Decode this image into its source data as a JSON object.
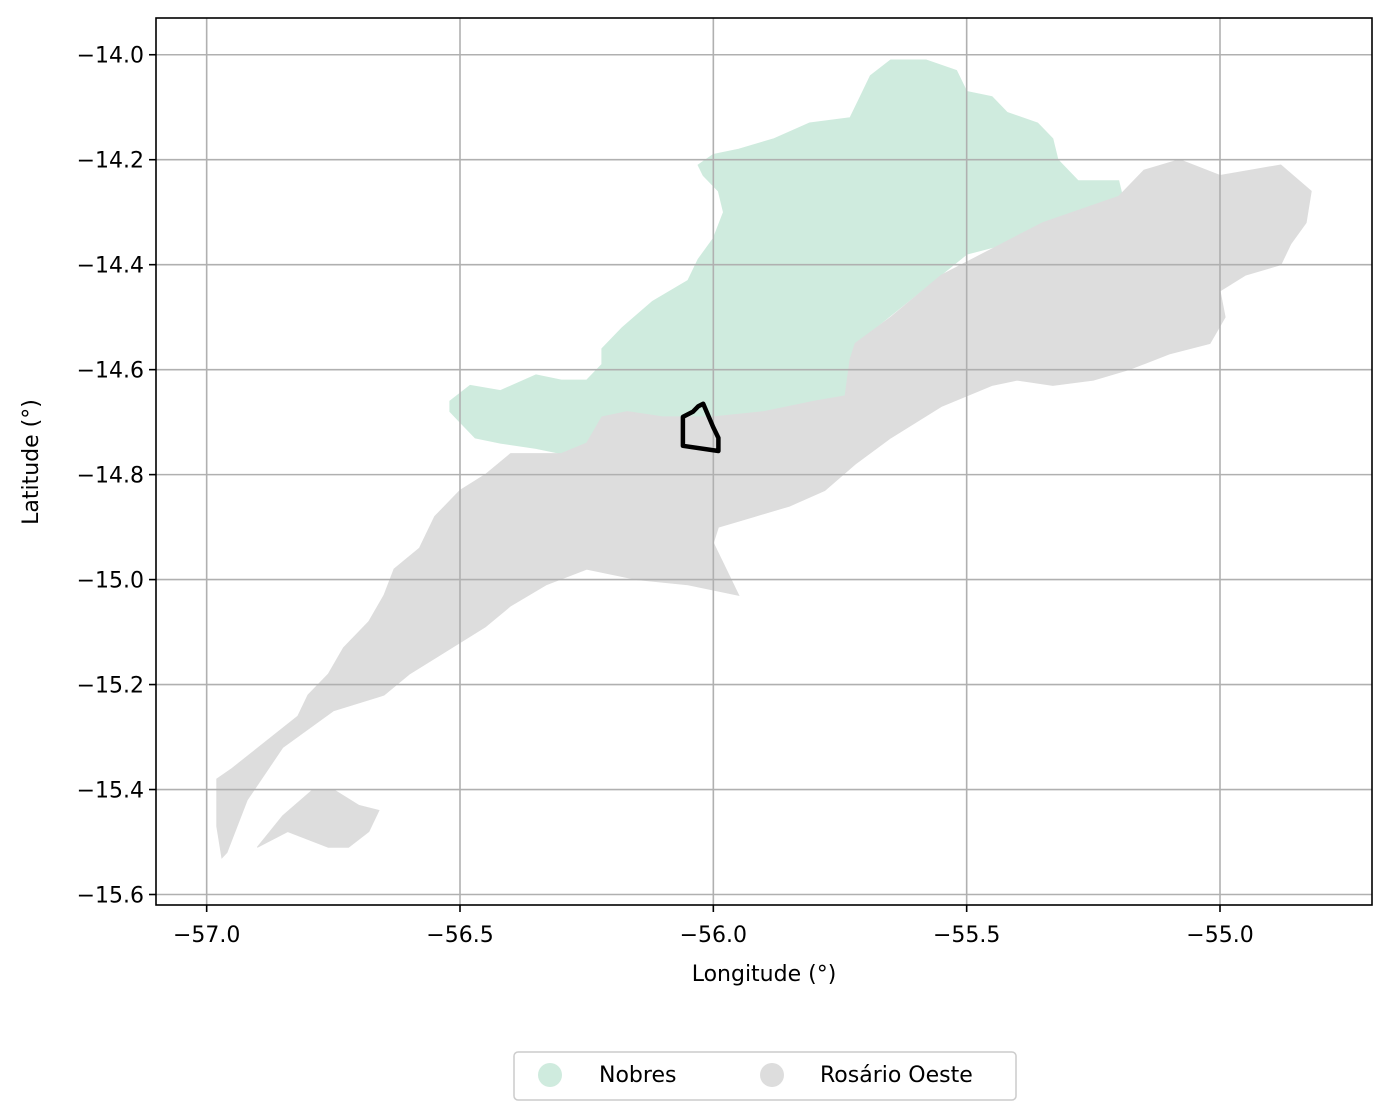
{
  "map": {
    "xlabel": "Longitude (°)",
    "ylabel": "Latitude (°)",
    "xlim": [
      -57.1,
      -54.7
    ],
    "ylim": [
      -15.62,
      -13.93
    ],
    "grid": true,
    "x_ticks": [
      {
        "value": -57.0,
        "label": "−57.0"
      },
      {
        "value": -56.5,
        "label": "−56.5"
      },
      {
        "value": -56.0,
        "label": "−56.0"
      },
      {
        "value": -55.5,
        "label": "−55.5"
      },
      {
        "value": -55.0,
        "label": "−55.0"
      }
    ],
    "y_ticks": [
      {
        "value": -14.0,
        "label": "−14.0"
      },
      {
        "value": -14.2,
        "label": "−14.2"
      },
      {
        "value": -14.4,
        "label": "−14.4"
      },
      {
        "value": -14.6,
        "label": "−14.6"
      },
      {
        "value": -14.8,
        "label": "−14.8"
      },
      {
        "value": -15.0,
        "label": "−15.0"
      },
      {
        "value": -15.2,
        "label": "−15.2"
      },
      {
        "value": -15.4,
        "label": "−15.4"
      },
      {
        "value": -15.6,
        "label": "−15.6"
      }
    ],
    "legend_position": "bottom-center",
    "regions": [
      {
        "name": "Nobres",
        "color": "#cfebde",
        "polygons": [
          [
            [
              -56.52,
              -14.66
            ],
            [
              -56.48,
              -14.63
            ],
            [
              -56.42,
              -14.64
            ],
            [
              -56.35,
              -14.61
            ],
            [
              -56.3,
              -14.62
            ],
            [
              -56.25,
              -14.62
            ],
            [
              -56.22,
              -14.59
            ],
            [
              -56.22,
              -14.56
            ],
            [
              -56.18,
              -14.52
            ],
            [
              -56.12,
              -14.47
            ],
            [
              -56.05,
              -14.43
            ],
            [
              -56.03,
              -14.39
            ],
            [
              -56.0,
              -14.35
            ],
            [
              -55.98,
              -14.3
            ],
            [
              -55.99,
              -14.26
            ],
            [
              -56.02,
              -14.23
            ],
            [
              -56.03,
              -14.21
            ],
            [
              -56.0,
              -14.19
            ],
            [
              -55.95,
              -14.18
            ],
            [
              -55.88,
              -14.16
            ],
            [
              -55.81,
              -14.13
            ],
            [
              -55.73,
              -14.12
            ],
            [
              -55.71,
              -14.08
            ],
            [
              -55.69,
              -14.04
            ],
            [
              -55.65,
              -14.01
            ],
            [
              -55.58,
              -14.01
            ],
            [
              -55.52,
              -14.03
            ],
            [
              -55.5,
              -14.07
            ],
            [
              -55.45,
              -14.08
            ],
            [
              -55.42,
              -14.11
            ],
            [
              -55.36,
              -14.13
            ],
            [
              -55.33,
              -14.16
            ],
            [
              -55.32,
              -14.2
            ],
            [
              -55.28,
              -14.24
            ],
            [
              -55.2,
              -14.24
            ],
            [
              -55.19,
              -14.28
            ],
            [
              -55.3,
              -14.33
            ],
            [
              -55.5,
              -14.38
            ],
            [
              -55.68,
              -14.52
            ],
            [
              -55.72,
              -14.55
            ],
            [
              -55.73,
              -14.6
            ],
            [
              -55.74,
              -14.65
            ],
            [
              -55.83,
              -14.67
            ],
            [
              -55.9,
              -14.68
            ],
            [
              -56.0,
              -14.69
            ],
            [
              -56.06,
              -14.7
            ],
            [
              -56.12,
              -14.69
            ],
            [
              -56.17,
              -14.68
            ],
            [
              -56.2,
              -14.71
            ],
            [
              -56.25,
              -14.74
            ],
            [
              -56.3,
              -14.76
            ],
            [
              -56.35,
              -14.75
            ],
            [
              -56.42,
              -14.74
            ],
            [
              -56.47,
              -14.73
            ],
            [
              -56.5,
              -14.7
            ],
            [
              -56.52,
              -14.68
            ]
          ]
        ]
      },
      {
        "name": "Rosário Oeste",
        "color": "#dddddd",
        "polygons": [
          [
            [
              -56.98,
              -15.38
            ],
            [
              -56.95,
              -15.36
            ],
            [
              -56.82,
              -15.26
            ],
            [
              -56.8,
              -15.22
            ],
            [
              -56.76,
              -15.18
            ],
            [
              -56.73,
              -15.13
            ],
            [
              -56.68,
              -15.08
            ],
            [
              -56.65,
              -15.03
            ],
            [
              -56.63,
              -14.98
            ],
            [
              -56.58,
              -14.94
            ],
            [
              -56.55,
              -14.88
            ],
            [
              -56.5,
              -14.83
            ],
            [
              -56.45,
              -14.8
            ],
            [
              -56.4,
              -14.76
            ],
            [
              -56.3,
              -14.76
            ],
            [
              -56.25,
              -14.74
            ],
            [
              -56.22,
              -14.69
            ],
            [
              -56.17,
              -14.68
            ],
            [
              -56.1,
              -14.69
            ],
            [
              -56.0,
              -14.69
            ],
            [
              -55.9,
              -14.68
            ],
            [
              -55.8,
              -14.66
            ],
            [
              -55.74,
              -14.65
            ],
            [
              -55.73,
              -14.58
            ],
            [
              -55.72,
              -14.55
            ],
            [
              -55.65,
              -14.5
            ],
            [
              -55.55,
              -14.42
            ],
            [
              -55.45,
              -14.37
            ],
            [
              -55.35,
              -14.32
            ],
            [
              -55.2,
              -14.27
            ],
            [
              -55.19,
              -14.26
            ],
            [
              -55.15,
              -14.22
            ],
            [
              -55.08,
              -14.2
            ],
            [
              -55.0,
              -14.23
            ],
            [
              -54.94,
              -14.22
            ],
            [
              -54.88,
              -14.21
            ],
            [
              -54.82,
              -14.26
            ],
            [
              -54.83,
              -14.32
            ],
            [
              -54.86,
              -14.36
            ],
            [
              -54.88,
              -14.4
            ],
            [
              -54.95,
              -14.42
            ],
            [
              -55.0,
              -14.45
            ],
            [
              -54.99,
              -14.5
            ],
            [
              -55.02,
              -14.55
            ],
            [
              -55.1,
              -14.57
            ],
            [
              -55.18,
              -14.6
            ],
            [
              -55.25,
              -14.62
            ],
            [
              -55.33,
              -14.63
            ],
            [
              -55.4,
              -14.62
            ],
            [
              -55.45,
              -14.63
            ],
            [
              -55.55,
              -14.67
            ],
            [
              -55.65,
              -14.73
            ],
            [
              -55.72,
              -14.78
            ],
            [
              -55.78,
              -14.83
            ],
            [
              -55.85,
              -14.86
            ],
            [
              -55.92,
              -14.88
            ],
            [
              -55.99,
              -14.9
            ],
            [
              -56.0,
              -14.93
            ],
            [
              -55.98,
              -14.97
            ],
            [
              -55.95,
              -15.03
            ],
            [
              -56.05,
              -15.01
            ],
            [
              -56.15,
              -15.0
            ],
            [
              -56.25,
              -14.98
            ],
            [
              -56.33,
              -15.01
            ],
            [
              -56.4,
              -15.05
            ],
            [
              -56.45,
              -15.09
            ],
            [
              -56.5,
              -15.12
            ],
            [
              -56.55,
              -15.15
            ],
            [
              -56.6,
              -15.18
            ],
            [
              -56.65,
              -15.22
            ],
            [
              -56.75,
              -15.25
            ],
            [
              -56.85,
              -15.32
            ],
            [
              -56.92,
              -15.42
            ],
            [
              -56.96,
              -15.52
            ],
            [
              -56.97,
              -15.53
            ],
            [
              -56.98,
              -15.47
            ],
            [
              -56.98,
              -15.42
            ]
          ],
          [
            [
              -56.9,
              -15.51
            ],
            [
              -56.85,
              -15.45
            ],
            [
              -56.79,
              -15.4
            ],
            [
              -56.75,
              -15.4
            ],
            [
              -56.7,
              -15.43
            ],
            [
              -56.66,
              -15.44
            ],
            [
              -56.68,
              -15.48
            ],
            [
              -56.72,
              -15.51
            ],
            [
              -56.76,
              -15.51
            ],
            [
              -56.84,
              -15.48
            ]
          ]
        ]
      }
    ],
    "outline": {
      "color": "#000000",
      "points": [
        [
          -56.06,
          -14.69
        ],
        [
          -56.04,
          -14.68
        ],
        [
          -56.03,
          -14.67
        ],
        [
          -56.02,
          -14.665
        ],
        [
          -56.0,
          -14.71
        ],
        [
          -55.99,
          -14.73
        ],
        [
          -55.99,
          -14.755
        ],
        [
          -56.06,
          -14.745
        ],
        [
          -56.06,
          -14.72
        ]
      ]
    }
  },
  "legend": {
    "items": [
      {
        "label": "Nobres",
        "color": "#cfebde"
      },
      {
        "label": "Rosário Oeste",
        "color": "#dddddd"
      }
    ]
  }
}
